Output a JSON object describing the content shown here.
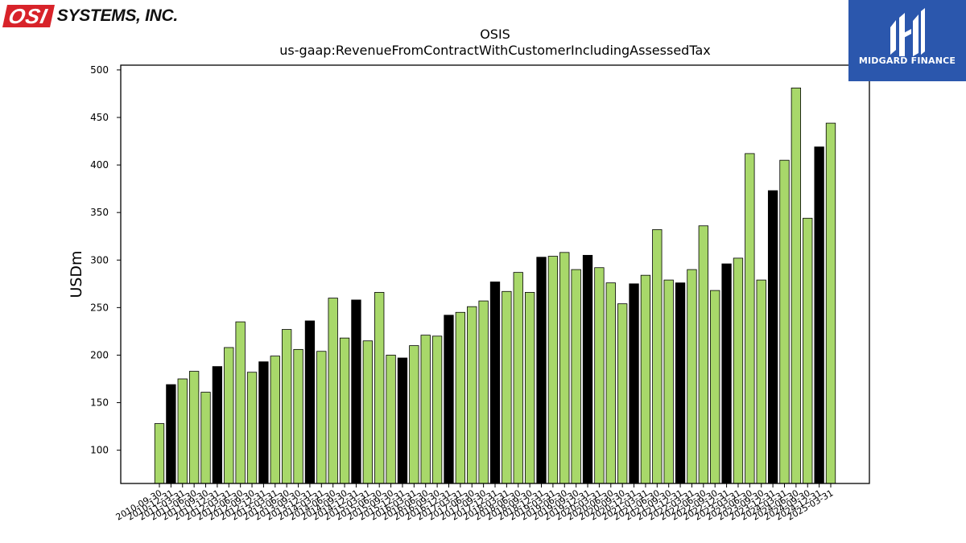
{
  "company_logo": {
    "mark": "OSI",
    "text": "SYSTEMS, INC."
  },
  "watermark": {
    "text": "MIDGARD FINANCE",
    "bg_color": "#2b57ad"
  },
  "chart_data": {
    "type": "bar",
    "title": "OSIS",
    "subtitle": "us-gaap:RevenueFromContractWithCustomerIncludingAssessedTax",
    "xlabel": "",
    "ylabel": "USDm",
    "ylim": [
      65,
      505
    ],
    "yticks": [
      100,
      150,
      200,
      250,
      300,
      350,
      400,
      450,
      500
    ],
    "grid": false,
    "legend": "none",
    "colors": {
      "quarter": "#a8d86a",
      "year_end": "#000000",
      "edge": "#000000"
    },
    "categories": [
      "2010-09-30",
      "2010-12-31",
      "2011-03-31",
      "2011-06-30",
      "2011-09-30",
      "2011-12-31",
      "2012-03-31",
      "2012-06-30",
      "2012-09-30",
      "2012-12-31",
      "2013-03-31",
      "2013-06-30",
      "2013-09-30",
      "2013-12-31",
      "2014-03-31",
      "2014-06-30",
      "2014-09-30",
      "2014-12-31",
      "2015-03-31",
      "2015-06-30",
      "2015-09-30",
      "2015-12-31",
      "2016-03-31",
      "2016-06-30",
      "2016-09-30",
      "2016-12-31",
      "2017-03-31",
      "2017-06-30",
      "2017-09-30",
      "2017-12-31",
      "2018-03-31",
      "2018-06-30",
      "2018-09-30",
      "2018-12-31",
      "2019-03-31",
      "2019-06-30",
      "2019-09-30",
      "2019-12-31",
      "2020-03-31",
      "2020-06-30",
      "2020-09-30",
      "2020-12-31",
      "2021-03-31",
      "2021-06-30",
      "2021-09-30",
      "2021-12-31",
      "2022-03-31",
      "2022-06-30",
      "2022-09-30",
      "2022-12-31",
      "2023-03-31",
      "2023-06-30",
      "2023-09-30",
      "2023-12-31",
      "2024-03-31",
      "2024-06-30",
      "2024-09-30",
      "2024-12-31",
      "2025-03-31"
    ],
    "values": [
      128,
      169,
      175,
      183,
      161,
      188,
      208,
      235,
      182,
      193,
      199,
      227,
      206,
      236,
      204,
      260,
      218,
      258,
      215,
      266,
      200,
      197,
      210,
      221,
      220,
      242,
      245,
      251,
      257,
      277,
      267,
      287,
      266,
      303,
      304,
      308,
      290,
      305,
      292,
      276,
      254,
      275,
      284,
      332,
      279,
      276,
      290,
      336,
      268,
      296,
      302,
      412,
      279,
      373,
      405,
      481,
      344,
      419,
      444
    ],
    "highlight_categories": [
      "2010-12-31",
      "2011-12-31",
      "2012-12-31",
      "2013-12-31",
      "2014-12-31",
      "2015-12-31",
      "2016-12-31",
      "2017-12-31",
      "2018-12-31",
      "2019-12-31",
      "2020-12-31",
      "2021-12-31",
      "2022-12-31",
      "2023-12-31",
      "2024-12-31"
    ]
  }
}
